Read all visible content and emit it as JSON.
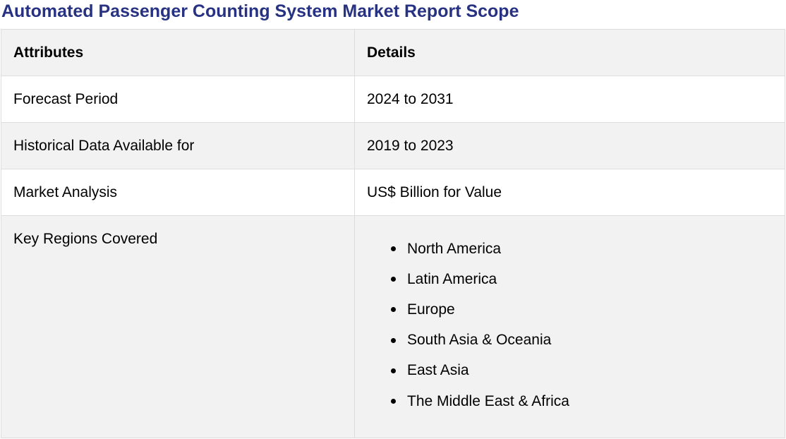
{
  "title": "Automated Passenger Counting System Market Report Scope",
  "table": {
    "headers": [
      "Attributes",
      "Details"
    ],
    "rows": [
      {
        "attribute": "Forecast Period",
        "detail": "2024 to 2031"
      },
      {
        "attribute": "Historical Data Available for",
        "detail": "2019 to 2023"
      },
      {
        "attribute": "Market Analysis",
        "detail": "US$ Billion for Value"
      },
      {
        "attribute": "Key Regions Covered",
        "details_list": [
          "North America",
          "Latin America",
          "Europe",
          "South Asia & Oceania",
          "East Asia",
          "The Middle East & Africa"
        ]
      }
    ]
  },
  "colors": {
    "title": "#273282",
    "row_shade": "#f2f2f2",
    "border": "#dddddd"
  }
}
